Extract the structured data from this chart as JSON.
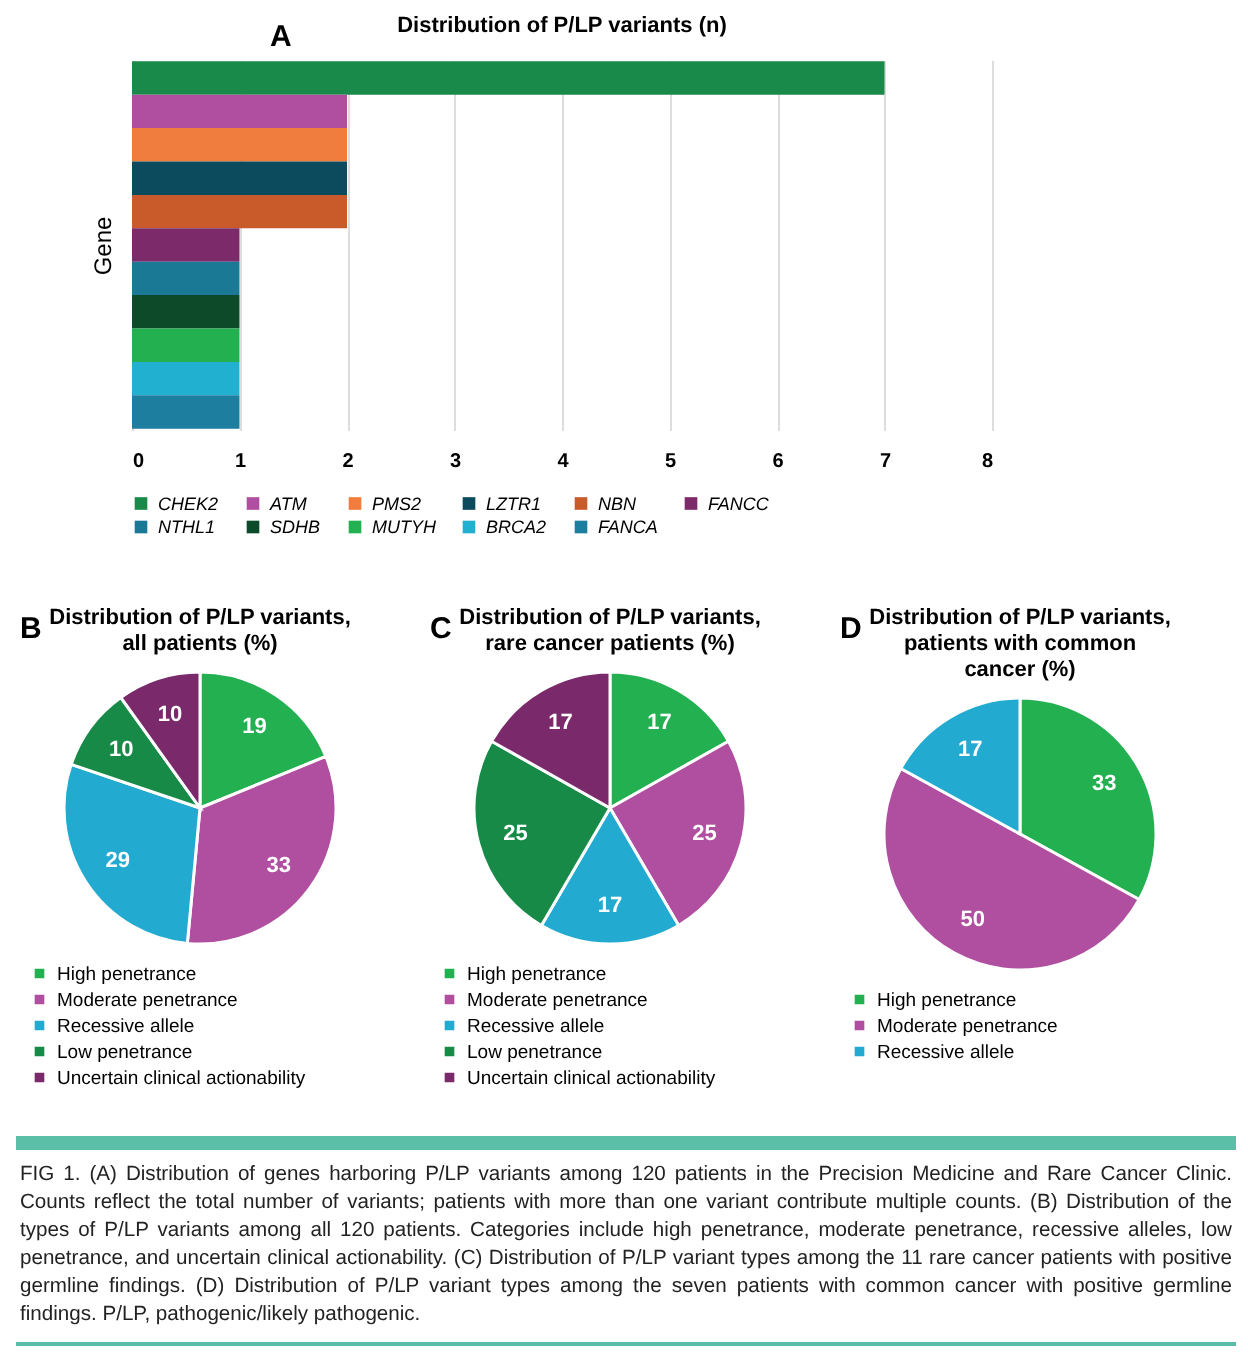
{
  "chart_data": [
    {
      "type": "bar",
      "orientation": "horizontal",
      "title": "Distribution of P/LP variants (n)",
      "ylabel": "Gene",
      "annotations": [
        "A",
        "FIG 1. (A) Distribution of genes harboring P/LP variants among 120 patients in the Precision Medicine and Rare Cancer Clinic. Counts reflect the total number of variants; patients with more than one variant contribute multiple counts. (B) Distribution of the types of P/LP variants among all 120 patients. Categories include high penetrance, moderate penetrance, recessive alleles, low penetrance, and uncertain clinical actionability. (C) Distribution of P/LP variant types among the 11 rare cancer patients with positive germline findings. (D) Distribution of P/LP variant types among the seven patients with common cancer with positive germline findings. P/LP, pathogenic/likely pathogenic."
      ],
      "categories": [
        null,
        null,
        null,
        null,
        null,
        null,
        null,
        null,
        null,
        null,
        null
      ],
      "xlim": [
        0,
        8
      ],
      "xticks": [
        0,
        1,
        2,
        3,
        4,
        5,
        6,
        7,
        8
      ],
      "grid": "x",
      "legend": "bottom",
      "tick_labels": "x",
      "series": [
        {
          "name": "CHEK2",
          "color": "#1a8a4a",
          "values": [
            7,
            null,
            null,
            null,
            null,
            null,
            null,
            null,
            null,
            null,
            null
          ]
        },
        {
          "name": "ATM",
          "color": "#b04fa0",
          "values": [
            null,
            2,
            null,
            null,
            null,
            null,
            null,
            null,
            null,
            null,
            null
          ]
        },
        {
          "name": "PMS2",
          "color": "#f07d3e",
          "values": [
            null,
            null,
            2,
            null,
            null,
            null,
            null,
            null,
            null,
            null,
            null
          ]
        },
        {
          "name": "LZTR1",
          "color": "#0c4a5e",
          "values": [
            null,
            null,
            null,
            2,
            null,
            null,
            null,
            null,
            null,
            null,
            null
          ]
        },
        {
          "name": "NBN",
          "color": "#c95a2a",
          "values": [
            null,
            null,
            null,
            null,
            2,
            null,
            null,
            null,
            null,
            null,
            null
          ]
        },
        {
          "name": "FANCC",
          "color": "#7d2a6a",
          "values": [
            null,
            null,
            null,
            null,
            null,
            1,
            null,
            null,
            null,
            null,
            null
          ]
        },
        {
          "name": "NTHL1",
          "color": "#1a7a96",
          "values": [
            null,
            null,
            null,
            null,
            null,
            null,
            1,
            null,
            null,
            null,
            null
          ]
        },
        {
          "name": "SDHB",
          "color": "#0c4a2a",
          "values": [
            null,
            null,
            null,
            null,
            null,
            null,
            null,
            1,
            null,
            null,
            null
          ]
        },
        {
          "name": "MUTYH",
          "color": "#22b050",
          "values": [
            null,
            null,
            null,
            null,
            null,
            null,
            null,
            null,
            1,
            null,
            null
          ]
        },
        {
          "name": "BRCA2",
          "color": "#22b0d0",
          "values": [
            null,
            null,
            null,
            null,
            null,
            null,
            null,
            null,
            null,
            1,
            null
          ]
        },
        {
          "name": "FANCA",
          "color": "#1d7ea0",
          "values": [
            null,
            null,
            null,
            null,
            null,
            null,
            null,
            null,
            null,
            null,
            1
          ]
        }
      ]
    },
    {
      "type": "pie",
      "title": "Distribution of P/LP variants,\nall patients (%)",
      "annotations": [
        "B"
      ],
      "legend": "bottom",
      "data_labels": true,
      "categories": [
        "High penetrance",
        "Moderate penetrance",
        "Recessive allele",
        "Low penetrance",
        "Uncertain clinical actionability"
      ],
      "values": [
        19,
        33,
        29,
        10,
        10
      ],
      "colors": [
        "#22b050",
        "#b04fa0",
        "#22aad0",
        "#178a48",
        "#7a2a6a"
      ]
    },
    {
      "type": "pie",
      "title": "Distribution of P/LP variants,\nrare cancer patients (%)",
      "annotations": [
        "C"
      ],
      "legend": "bottom",
      "data_labels": true,
      "categories": [
        "High penetrance",
        "Moderate penetrance",
        "Recessive allele",
        "Low penetrance",
        "Uncertain clinical actionability"
      ],
      "values": [
        17,
        25,
        17,
        25,
        17
      ],
      "colors": [
        "#22b050",
        "#b04fa0",
        "#22aad0",
        "#178a48",
        "#7a2a6a"
      ]
    },
    {
      "type": "pie",
      "title": "Distribution of P/LP variants,\npatients with common\ncancer (%)",
      "annotations": [
        "D"
      ],
      "legend": "bottom",
      "data_labels": true,
      "categories": [
        "High penetrance",
        "Moderate penetrance",
        "Recessive allele"
      ],
      "values": [
        33,
        50,
        17
      ],
      "colors": [
        "#22b050",
        "#b04fa0",
        "#22aad0"
      ]
    }
  ]
}
